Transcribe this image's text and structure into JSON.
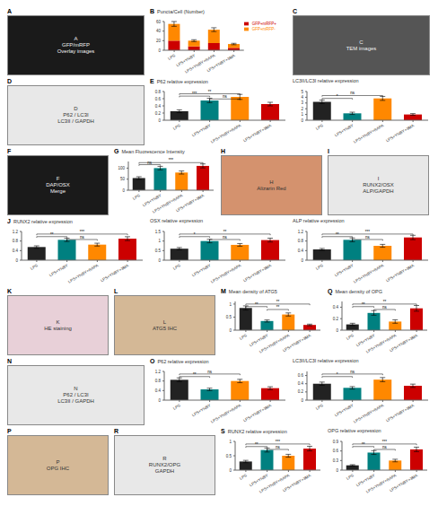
{
  "chart_data": [
    {
      "type": "image",
      "title": "A",
      "annotations": [
        {
          "text": "A\nGFP/mRFP\nOverlay images"
        }
      ],
      "color": "#1a1a1a"
    },
    {
      "type": "bar",
      "title": "B",
      "stacked": true,
      "legend": "upper right",
      "categories": [
        "LPS",
        "LPS+YNBY",
        "LPS+YNBY+RAPA",
        "LPS+YNBY+3MA"
      ],
      "series": [
        {
          "name": "GFP+mRFP+",
          "color": "#cc0000",
          "values": [
            20,
            8,
            15,
            5
          ]
        },
        {
          "name": "GFP+mRFP-",
          "color": "#ff8800",
          "values": [
            35,
            12,
            28,
            8
          ],
          "errors": [
            5,
            2,
            4,
            1.5
          ]
        }
      ],
      "ylabel": "Puncta/Cell (Number)",
      "ylim": [
        0,
        60
      ],
      "yticks": [
        0,
        20,
        40,
        60
      ]
    },
    {
      "type": "image",
      "title": "C",
      "annotations": [
        {
          "text": "C\nTEM images"
        }
      ],
      "color": "#555555"
    },
    {
      "type": "image",
      "title": "D",
      "annotations": [
        {
          "text": "D\nP62 / LC3I\nLC3II / GAPDH"
        }
      ],
      "color": "#e8e8e8"
    },
    {
      "type": "bar",
      "title": "E",
      "categories": [
        "LPS",
        "LPS+YNBY",
        "LPS+YNBY+RAPA",
        "LPS+YNBY+3MA"
      ],
      "values": [
        0.25,
        0.55,
        0.65,
        0.45
      ],
      "errors": [
        0.04,
        0.06,
        0.07,
        0.05
      ],
      "colors": [
        "#222222",
        "#008080",
        "#ff8800",
        "#cc0000"
      ],
      "ylabel": "P62 relative expression",
      "ylim": [
        0,
        0.8
      ],
      "yticks": [
        0,
        0.2,
        0.4,
        0.6,
        0.8
      ],
      "annotations": [
        {
          "text": "***",
          "from": "LPS",
          "to": "LPS+YNBY",
          "y": 0.64,
          "y_top": 0.672
        },
        {
          "text": "**",
          "from": "LPS",
          "to": "LPS+YNBY+RAPA",
          "y": 0.704,
          "y_top": 0.736
        },
        {
          "text": "ns",
          "from": "LPS+YNBY",
          "to": "LPS+YNBY+RAPA",
          "y": 0.56,
          "y_top": 0.592
        }
      ]
    },
    {
      "type": "bar",
      "categories": [
        "LPS",
        "LPS+YNBY",
        "LPS+YNBY+RAPA",
        "LPS+YNBY+3MA"
      ],
      "values": [
        3.2,
        1.2,
        3.8,
        1.0
      ],
      "errors": [
        0.3,
        0.2,
        0.35,
        0.15
      ],
      "colors": [
        "#222222",
        "#008080",
        "#ff8800",
        "#cc0000"
      ],
      "ylabel": "LC3II/LC3I relative expression",
      "ylim": [
        0,
        5
      ],
      "yticks": [
        0,
        1,
        2,
        3,
        4,
        5
      ],
      "annotations": [
        {
          "text": "*",
          "from": "LPS",
          "to": "LPS+YNBY",
          "y": 3.6,
          "y_top": 3.8
        },
        {
          "text": "ns",
          "from": "LPS",
          "to": "LPS+YNBY+RAPA",
          "y": 4.1,
          "y_top": 4.3
        }
      ]
    },
    {
      "type": "image",
      "title": "F",
      "annotations": [
        {
          "text": "F\nDAP/OSX\nMerge"
        }
      ],
      "color": "#1a1a1a"
    },
    {
      "type": "bar",
      "title": "G",
      "categories": [
        "LPS",
        "LPS+YNBY",
        "LPS+YNBY+RAPA",
        "LPS+YNBY+3MA"
      ],
      "values": [
        55,
        100,
        80,
        110
      ],
      "errors": [
        6,
        8,
        7,
        9
      ],
      "colors": [
        "#222222",
        "#008080",
        "#ff8800",
        "#cc0000"
      ],
      "ylabel": "Mean Fluorescence Intensity",
      "ylim": [
        0,
        130
      ],
      "yticks": [
        0,
        50,
        100
      ],
      "annotations": [
        {
          "text": "ns",
          "from": "LPS",
          "to": "LPS+YNBY",
          "y": 110.5,
          "y_top": 115.7
        },
        {
          "text": "***",
          "from": "LPS",
          "to": "LPS+YNBY+3MA",
          "y": 119.6,
          "y_top": 124.8
        }
      ]
    },
    {
      "type": "image",
      "title": "H",
      "annotations": [
        {
          "text": "H\nAlizarin Red"
        }
      ],
      "color": "#d4926e"
    },
    {
      "type": "image",
      "title": "I",
      "annotations": [
        {
          "text": "I\nRUNX2/OSX\nALP/GAPDH"
        }
      ],
      "color": "#e8e8e8"
    },
    {
      "type": "bar",
      "title": "J",
      "categories": [
        "LPS",
        "LPS+YNBY",
        "LPS+YNBY+RAPA",
        "LPS+YNBY+3MA"
      ],
      "values": [
        0.55,
        0.85,
        0.65,
        0.9
      ],
      "errors": [
        0.05,
        0.07,
        0.06,
        0.08
      ],
      "colors": [
        "#222222",
        "#008080",
        "#ff8800",
        "#cc0000"
      ],
      "ylabel": "RUNX2 relative expression",
      "ylim": [
        0,
        1.2
      ],
      "yticks": [
        0,
        0.4,
        0.8,
        1.2
      ],
      "annotations": [
        {
          "text": "**",
          "from": "LPS",
          "to": "LPS+YNBY",
          "y": 0.936,
          "y_top": 0.984
        },
        {
          "text": "***",
          "from": "LPS",
          "to": "LPS+YNBY+3MA",
          "y": 1.044,
          "y_top": 1.092
        },
        {
          "text": "ns",
          "from": "LPS+YNBY",
          "to": "LPS+YNBY+RAPA",
          "y": 0.816,
          "y_top": 0.864
        }
      ]
    },
    {
      "type": "bar",
      "categories": [
        "LPS",
        "LPS+YNBY",
        "LPS+YNBY+RAPA",
        "LPS+YNBY+3MA"
      ],
      "values": [
        0.6,
        1.0,
        0.8,
        1.05
      ],
      "errors": [
        0.06,
        0.09,
        0.07,
        0.1
      ],
      "colors": [
        "#222222",
        "#008080",
        "#ff8800",
        "#cc0000"
      ],
      "ylabel": "OSX relative expression",
      "ylim": [
        0,
        1.5
      ],
      "yticks": [
        0,
        0.5,
        1,
        1.5
      ],
      "annotations": [
        {
          "text": "*",
          "from": "LPS",
          "to": "LPS+YNBY",
          "y": 1.17,
          "y_top": 1.23
        },
        {
          "text": "**",
          "from": "LPS",
          "to": "LPS+YNBY+3MA",
          "y": 1.305,
          "y_top": 1.365
        },
        {
          "text": "ns",
          "from": "LPS+YNBY",
          "to": "LPS+YNBY+RAPA",
          "y": 1.02,
          "y_top": 1.08
        }
      ]
    },
    {
      "type": "bar",
      "categories": [
        "LPS",
        "LPS+YNBY",
        "LPS+YNBY+RAPA",
        "LPS+YNBY+3MA"
      ],
      "values": [
        0.45,
        0.85,
        0.6,
        0.95
      ],
      "errors": [
        0.04,
        0.08,
        0.06,
        0.09
      ],
      "colors": [
        "#222222",
        "#008080",
        "#ff8800",
        "#cc0000"
      ],
      "ylabel": "ALP relative expression",
      "ylim": [
        0,
        1.2
      ],
      "yticks": [
        0,
        0.4,
        0.8,
        1.2
      ],
      "annotations": [
        {
          "text": "**",
          "from": "LPS",
          "to": "LPS+YNBY",
          "y": 0.936,
          "y_top": 0.984
        },
        {
          "text": "***",
          "from": "LPS",
          "to": "LPS+YNBY+3MA",
          "y": 1.044,
          "y_top": 1.092
        },
        {
          "text": "ns",
          "from": "LPS+YNBY",
          "to": "LPS+YNBY+RAPA",
          "y": 0.816,
          "y_top": 0.864
        }
      ]
    },
    {
      "type": "image",
      "title": "K",
      "annotations": [
        {
          "text": "K\nHE staining"
        }
      ],
      "color": "#e8d0d8"
    },
    {
      "type": "image",
      "title": "L",
      "annotations": [
        {
          "text": "L\nATG5 IHC"
        }
      ],
      "color": "#d4b896"
    },
    {
      "type": "bar",
      "title": "M",
      "categories": [
        "LPS",
        "LPS+YNBY",
        "LPS+YNBY+RAPA",
        "LPS+YNBY+3MA"
      ],
      "values": [
        0.85,
        0.35,
        0.6,
        0.2
      ],
      "errors": [
        0.08,
        0.04,
        0.06,
        0.03
      ],
      "colors": [
        "#222222",
        "#008080",
        "#ff8800",
        "#cc0000"
      ],
      "ylabel": "Mean density of ATG5",
      "ylim": [
        0,
        1.1
      ],
      "yticks": [
        0,
        0.5,
        1
      ],
      "annotations": [
        {
          "text": "**",
          "from": "LPS",
          "to": "LPS+YNBY",
          "y": 0.858,
          "y_top": 0.902
        },
        {
          "text": "**",
          "from": "LPS",
          "to": "LPS+YNBY+3MA",
          "y": 0.957,
          "y_top": 1.001
        },
        {
          "text": "**",
          "from": "LPS+YNBY",
          "to": "LPS+YNBY+RAPA",
          "y": 0.748,
          "y_top": 0.792
        }
      ]
    },
    {
      "type": "bar",
      "title": "Q",
      "categories": [
        "LPS",
        "LPS+YNBY",
        "LPS+YNBY+RAPA",
        "LPS+YNBY+3MA"
      ],
      "values": [
        0.1,
        0.3,
        0.15,
        0.38
      ],
      "errors": [
        0.02,
        0.04,
        0.03,
        0.05
      ],
      "colors": [
        "#222222",
        "#008080",
        "#ff8800",
        "#cc0000"
      ],
      "ylabel": "Mean density of OPG",
      "ylim": [
        0,
        0.5
      ],
      "yticks": [
        0,
        0.2,
        0.4
      ],
      "annotations": [
        {
          "text": "**",
          "from": "LPS",
          "to": "LPS+YNBY",
          "y": 0.39,
          "y_top": 0.41
        },
        {
          "text": "**",
          "from": "LPS",
          "to": "LPS+YNBY+3MA",
          "y": 0.435,
          "y_top": 0.455
        },
        {
          "text": "ns",
          "from": "LPS+YNBY",
          "to": "LPS+YNBY+RAPA",
          "y": 0.34,
          "y_top": 0.36
        }
      ]
    },
    {
      "type": "image",
      "title": "N",
      "annotations": [
        {
          "text": "N\nP62 / LC3I\nLC3II / GAPDH"
        }
      ],
      "color": "#e8e8e8"
    },
    {
      "type": "bar",
      "title": "O",
      "categories": [
        "LPS",
        "LPS+YNBY",
        "LPS+YNBY+RAPA",
        "LPS+YNBY+3MA"
      ],
      "values": [
        0.85,
        0.45,
        0.8,
        0.5
      ],
      "errors": [
        0.08,
        0.05,
        0.07,
        0.06
      ],
      "colors": [
        "#222222",
        "#008080",
        "#ff8800",
        "#cc0000"
      ],
      "ylabel": "P62 relative expression",
      "ylim": [
        0,
        1.2
      ],
      "yticks": [
        0,
        0.4,
        0.8,
        1.2
      ],
      "annotations": [
        {
          "text": "**",
          "from": "LPS",
          "to": "LPS+YNBY",
          "y": 0.936,
          "y_top": 0.984
        },
        {
          "text": "ns",
          "from": "LPS",
          "to": "LPS+YNBY+RAPA",
          "y": 1.044,
          "y_top": 1.092
        }
      ]
    },
    {
      "type": "bar",
      "categories": [
        "LPS",
        "LPS+YNBY",
        "LPS+YNBY+RAPA",
        "LPS+YNBY+3MA"
      ],
      "values": [
        0.4,
        0.3,
        0.5,
        0.35
      ],
      "errors": [
        0.04,
        0.03,
        0.05,
        0.04
      ],
      "colors": [
        "#222222",
        "#008080",
        "#ff8800",
        "#cc0000"
      ],
      "ylabel": "LC3II/LC3I relative expression",
      "ylim": [
        0,
        0.7
      ],
      "yticks": [
        0,
        0.2,
        0.4,
        0.6
      ],
      "annotations": [
        {
          "text": "*",
          "from": "LPS",
          "to": "LPS+YNBY",
          "y": 0.546,
          "y_top": 0.574
        },
        {
          "text": "ns",
          "from": "LPS",
          "to": "LPS+YNBY+RAPA",
          "y": 0.609,
          "y_top": 0.637
        }
      ]
    },
    {
      "type": "image",
      "title": "P",
      "annotations": [
        {
          "text": "P\nOPG IHC"
        }
      ],
      "color": "#d4b896"
    },
    {
      "type": "image",
      "title": "R",
      "annotations": [
        {
          "text": "R\nRUNX2/OPG\nGAPDH"
        }
      ],
      "color": "#e8e8e8"
    },
    {
      "type": "bar",
      "title": "S",
      "categories": [
        "LPS",
        "LPS+YNBY",
        "LPS+YNBY+RAPA",
        "LPS+YNBY+3MA"
      ],
      "values": [
        0.3,
        0.7,
        0.5,
        0.75
      ],
      "errors": [
        0.04,
        0.07,
        0.05,
        0.08
      ],
      "colors": [
        "#222222",
        "#008080",
        "#ff8800",
        "#cc0000"
      ],
      "ylabel": "RUNX2 relative expression",
      "ylim": [
        0,
        1.0
      ],
      "yticks": [
        0,
        0.5,
        1
      ],
      "annotations": [
        {
          "text": "**",
          "from": "LPS",
          "to": "LPS+YNBY",
          "y": 0.78,
          "y_top": 0.82
        },
        {
          "text": "***",
          "from": "LPS",
          "to": "LPS+YNBY+3MA",
          "y": 0.87,
          "y_top": 0.91
        },
        {
          "text": "ns",
          "from": "LPS+YNBY",
          "to": "LPS+YNBY+RAPA",
          "y": 0.68,
          "y_top": 0.72
        }
      ]
    },
    {
      "type": "bar",
      "categories": [
        "LPS",
        "LPS+YNBY",
        "LPS+YNBY+RAPA",
        "LPS+YNBY+3MA"
      ],
      "values": [
        0.15,
        0.55,
        0.3,
        0.65
      ],
      "errors": [
        0.02,
        0.06,
        0.04,
        0.07
      ],
      "colors": [
        "#222222",
        "#008080",
        "#ff8800",
        "#cc0000"
      ],
      "ylabel": "OPG relative expression",
      "ylim": [
        0,
        0.9
      ],
      "yticks": [
        0,
        0.3,
        0.6,
        0.9
      ],
      "annotations": [
        {
          "text": "**",
          "from": "LPS",
          "to": "LPS+YNBY",
          "y": 0.702,
          "y_top": 0.738
        },
        {
          "text": "***",
          "from": "LPS",
          "to": "LPS+YNBY+3MA",
          "y": 0.783,
          "y_top": 0.819
        },
        {
          "text": "ns",
          "from": "LPS+YNBY",
          "to": "LPS+YNBY+RAPA",
          "y": 0.612,
          "y_top": 0.648
        }
      ]
    }
  ]
}
